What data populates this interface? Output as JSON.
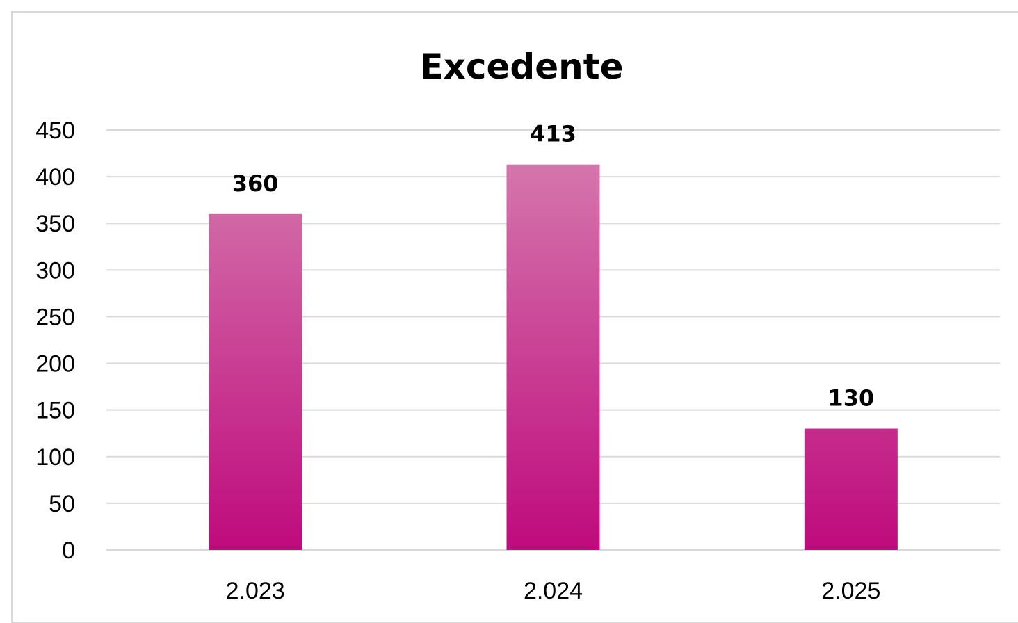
{
  "chart_data": {
    "type": "bar",
    "title": "Excedente",
    "xlabel": "",
    "ylabel": "",
    "categories": [
      "2.023",
      "2.024",
      "2.025"
    ],
    "values": [
      360,
      413,
      130
    ],
    "data_labels": [
      "360",
      "413",
      "130"
    ],
    "ylim": [
      0,
      450
    ],
    "yticks": [
      0,
      50,
      100,
      150,
      200,
      250,
      300,
      350,
      400,
      450
    ],
    "grid": true,
    "legend": "none",
    "colors": {
      "bar_top": "#d67fb0",
      "bar_bottom": "#bf0a7d",
      "gridline": "#d9d9d9",
      "text": "#000000"
    }
  }
}
